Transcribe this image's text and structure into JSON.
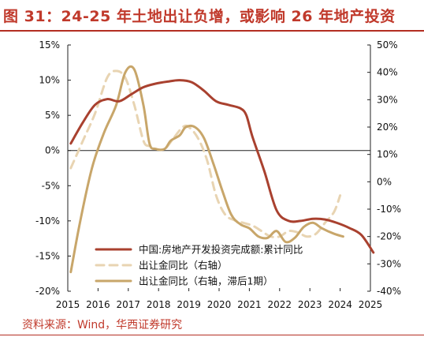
{
  "title": "图 31：24-25 年土地出让负增，或影响 26 年地产投资",
  "source": "资料来源：Wind，华西证券研究",
  "colors": {
    "accent": "#c0392b",
    "series1": "#a9412f",
    "series2": "#e8d4b2",
    "series3": "#c8a66a"
  },
  "chart_data": {
    "type": "line",
    "x_ticks": [
      "2015",
      "2016",
      "2017",
      "2018",
      "2019",
      "2020",
      "2021",
      "2022",
      "2023",
      "2024",
      "2025"
    ],
    "y_left": {
      "ticks": [
        "15%",
        "10%",
        "5%",
        "0%",
        "-5%",
        "-10%",
        "-15%",
        "-20%"
      ],
      "range": [
        -20,
        15
      ]
    },
    "y_right": {
      "ticks": [
        "50%",
        "40%",
        "30%",
        "20%",
        "10%",
        "0%",
        "-10%",
        "-20%",
        "-30%",
        "-40%"
      ],
      "range": [
        -40,
        50
      ]
    },
    "legend_position": "lower-left",
    "series": [
      {
        "name": "中国:房地产开发投资完成额:累计同比",
        "axis": "left",
        "style": "solid",
        "color": "#a9412f",
        "points": [
          [
            2015.1,
            1.0
          ],
          [
            2015.5,
            4.0
          ],
          [
            2015.9,
            6.5
          ],
          [
            2016.3,
            7.3
          ],
          [
            2016.7,
            7.0
          ],
          [
            2017.1,
            8.0
          ],
          [
            2017.5,
            9.0
          ],
          [
            2017.9,
            9.5
          ],
          [
            2018.3,
            9.8
          ],
          [
            2018.7,
            10.0
          ],
          [
            2019.1,
            9.7
          ],
          [
            2019.5,
            8.5
          ],
          [
            2019.9,
            7.0
          ],
          [
            2020.3,
            6.5
          ],
          [
            2020.7,
            6.0
          ],
          [
            2020.9,
            5.0
          ],
          [
            2021.1,
            2.0
          ],
          [
            2021.5,
            -3.0
          ],
          [
            2021.9,
            -8.5
          ],
          [
            2022.3,
            -10.0
          ],
          [
            2022.7,
            -10.0
          ],
          [
            2023.1,
            -9.7
          ],
          [
            2023.5,
            -9.8
          ],
          [
            2023.9,
            -10.3
          ],
          [
            2024.3,
            -11.0
          ],
          [
            2024.7,
            -12.0
          ],
          [
            2025.1,
            -14.5
          ]
        ]
      },
      {
        "name": "出让金同比（右轴）",
        "axis": "right",
        "style": "dashed",
        "color": "#e8d4b2",
        "points": [
          [
            2015.1,
            5.0
          ],
          [
            2015.5,
            15.0
          ],
          [
            2015.9,
            25.0
          ],
          [
            2016.3,
            38.0
          ],
          [
            2016.6,
            40.5
          ],
          [
            2016.9,
            38.0
          ],
          [
            2017.2,
            28.0
          ],
          [
            2017.5,
            15.0
          ],
          [
            2017.7,
            13.0
          ],
          [
            2017.9,
            12.0
          ],
          [
            2018.2,
            12.0
          ],
          [
            2018.5,
            16.0
          ],
          [
            2018.8,
            20.0
          ],
          [
            2019.0,
            20.0
          ],
          [
            2019.3,
            16.0
          ],
          [
            2019.6,
            8.0
          ],
          [
            2019.9,
            -5.0
          ],
          [
            2020.2,
            -12.0
          ],
          [
            2020.5,
            -14.0
          ],
          [
            2020.8,
            -15.0
          ],
          [
            2021.1,
            -16.0
          ],
          [
            2021.4,
            -18.0
          ],
          [
            2021.7,
            -20.0
          ],
          [
            2022.0,
            -20.0
          ],
          [
            2022.3,
            -18.0
          ],
          [
            2022.6,
            -18.5
          ],
          [
            2022.9,
            -20.0
          ],
          [
            2023.2,
            -19.0
          ],
          [
            2023.5,
            -15.0
          ],
          [
            2023.8,
            -11.0
          ],
          [
            2024.0,
            -5.0
          ]
        ]
      },
      {
        "name": "出让金同比（右轴，滞后1期）",
        "axis": "right",
        "style": "solid",
        "color": "#c8a66a",
        "points": [
          [
            2015.1,
            -33.0
          ],
          [
            2015.4,
            -15.0
          ],
          [
            2015.8,
            5.0
          ],
          [
            2016.2,
            18.0
          ],
          [
            2016.6,
            28.0
          ],
          [
            2016.9,
            40.0
          ],
          [
            2017.2,
            41.0
          ],
          [
            2017.5,
            28.0
          ],
          [
            2017.7,
            14.0
          ],
          [
            2017.9,
            12.0
          ],
          [
            2018.2,
            12.0
          ],
          [
            2018.4,
            15.0
          ],
          [
            2018.7,
            17.0
          ],
          [
            2018.9,
            20.0
          ],
          [
            2019.2,
            20.0
          ],
          [
            2019.5,
            16.0
          ],
          [
            2019.8,
            7.0
          ],
          [
            2020.1,
            -3.0
          ],
          [
            2020.4,
            -12.0
          ],
          [
            2020.7,
            -15.5
          ],
          [
            2021.0,
            -17.0
          ],
          [
            2021.3,
            -20.0
          ],
          [
            2021.6,
            -20.5
          ],
          [
            2021.9,
            -18.0
          ],
          [
            2022.2,
            -22.0
          ],
          [
            2022.5,
            -20.5
          ],
          [
            2022.8,
            -16.5
          ],
          [
            2023.1,
            -15.0
          ],
          [
            2023.4,
            -17.0
          ],
          [
            2023.8,
            -19.0
          ],
          [
            2024.1,
            -20.0
          ]
        ]
      }
    ]
  }
}
